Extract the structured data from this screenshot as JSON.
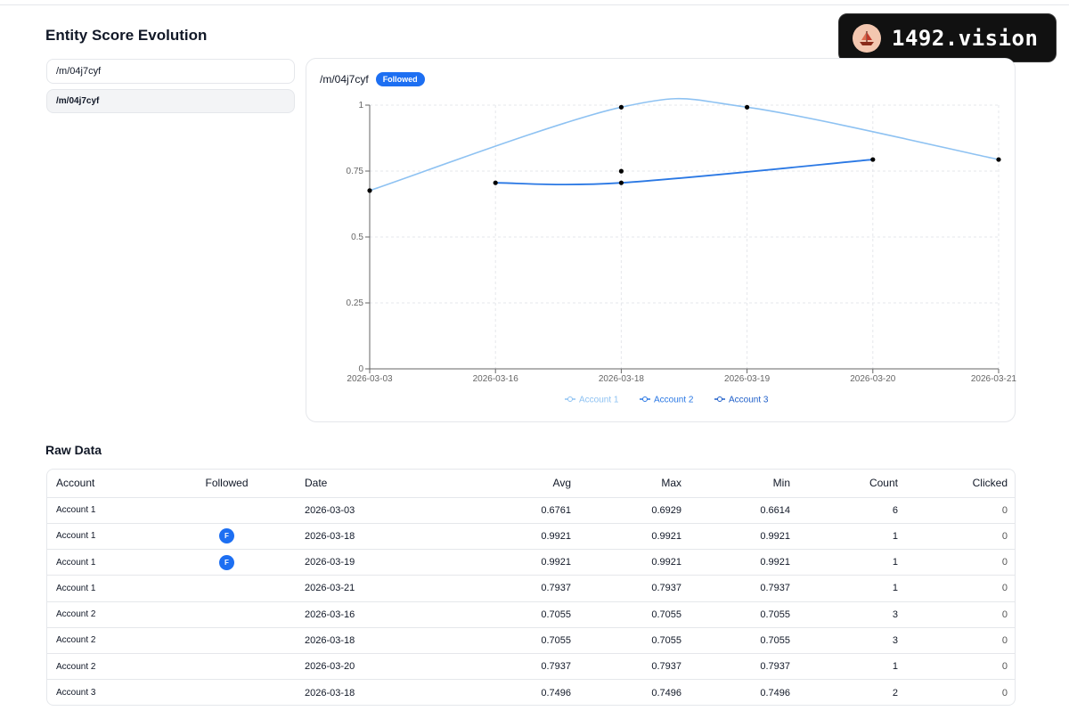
{
  "page": {
    "title": "Entity Score Evolution"
  },
  "brand": {
    "name": "1492.vision"
  },
  "entity_input": {
    "value": "/m/04j7cyf"
  },
  "entity_option": {
    "label": "/m/04j7cyf"
  },
  "chart_header": {
    "entity": "/m/04j7cyf",
    "badge": "Followed"
  },
  "chart_data": {
    "type": "line",
    "categories": [
      "2026-03-03",
      "2026-03-16",
      "2026-03-18",
      "2026-03-19",
      "2026-03-20",
      "2026-03-21"
    ],
    "ylim": [
      0,
      1
    ],
    "y_ticks": [
      0,
      0.25,
      0.5,
      0.75,
      1
    ],
    "y_tick_labels": [
      "0",
      "0.25",
      "0.5",
      "0.75",
      "1"
    ],
    "grid": true,
    "legend": "bottom",
    "series": [
      {
        "name": "Account 1",
        "color": "#8ec2f2",
        "points": [
          [
            "2026-03-03",
            0.6761
          ],
          [
            "2026-03-18",
            0.9921
          ],
          [
            "2026-03-19",
            0.9921
          ],
          [
            "2026-03-21",
            0.7937
          ]
        ]
      },
      {
        "name": "Account 2",
        "color": "#2a78e4",
        "points": [
          [
            "2026-03-16",
            0.7055
          ],
          [
            "2026-03-18",
            0.7055
          ],
          [
            "2026-03-20",
            0.7937
          ]
        ]
      },
      {
        "name": "Account 3",
        "color": "#1f5fc9",
        "points": [
          [
            "2026-03-18",
            0.7496
          ]
        ]
      }
    ]
  },
  "raw": {
    "title": "Raw Data",
    "columns": [
      "Account",
      "Followed",
      "Date",
      "Avg",
      "Max",
      "Min",
      "Count",
      "Clicked"
    ],
    "rows": [
      {
        "account": "Account 1",
        "followed": "",
        "date": "2026-03-03",
        "avg": "0.6761",
        "max": "0.6929",
        "min": "0.6614",
        "count": "6",
        "clicked": "0"
      },
      {
        "account": "Account 1",
        "followed": "F",
        "date": "2026-03-18",
        "avg": "0.9921",
        "max": "0.9921",
        "min": "0.9921",
        "count": "1",
        "clicked": "0"
      },
      {
        "account": "Account 1",
        "followed": "F",
        "date": "2026-03-19",
        "avg": "0.9921",
        "max": "0.9921",
        "min": "0.9921",
        "count": "1",
        "clicked": "0"
      },
      {
        "account": "Account 1",
        "followed": "",
        "date": "2026-03-21",
        "avg": "0.7937",
        "max": "0.7937",
        "min": "0.7937",
        "count": "1",
        "clicked": "0"
      },
      {
        "account": "Account 2",
        "followed": "",
        "date": "2026-03-16",
        "avg": "0.7055",
        "max": "0.7055",
        "min": "0.7055",
        "count": "3",
        "clicked": "0"
      },
      {
        "account": "Account 2",
        "followed": "",
        "date": "2026-03-18",
        "avg": "0.7055",
        "max": "0.7055",
        "min": "0.7055",
        "count": "3",
        "clicked": "0"
      },
      {
        "account": "Account 2",
        "followed": "",
        "date": "2026-03-20",
        "avg": "0.7937",
        "max": "0.7937",
        "min": "0.7937",
        "count": "1",
        "clicked": "0"
      },
      {
        "account": "Account 3",
        "followed": "",
        "date": "2026-03-18",
        "avg": "0.7496",
        "max": "0.7496",
        "min": "0.7496",
        "count": "2",
        "clicked": "0"
      }
    ]
  }
}
